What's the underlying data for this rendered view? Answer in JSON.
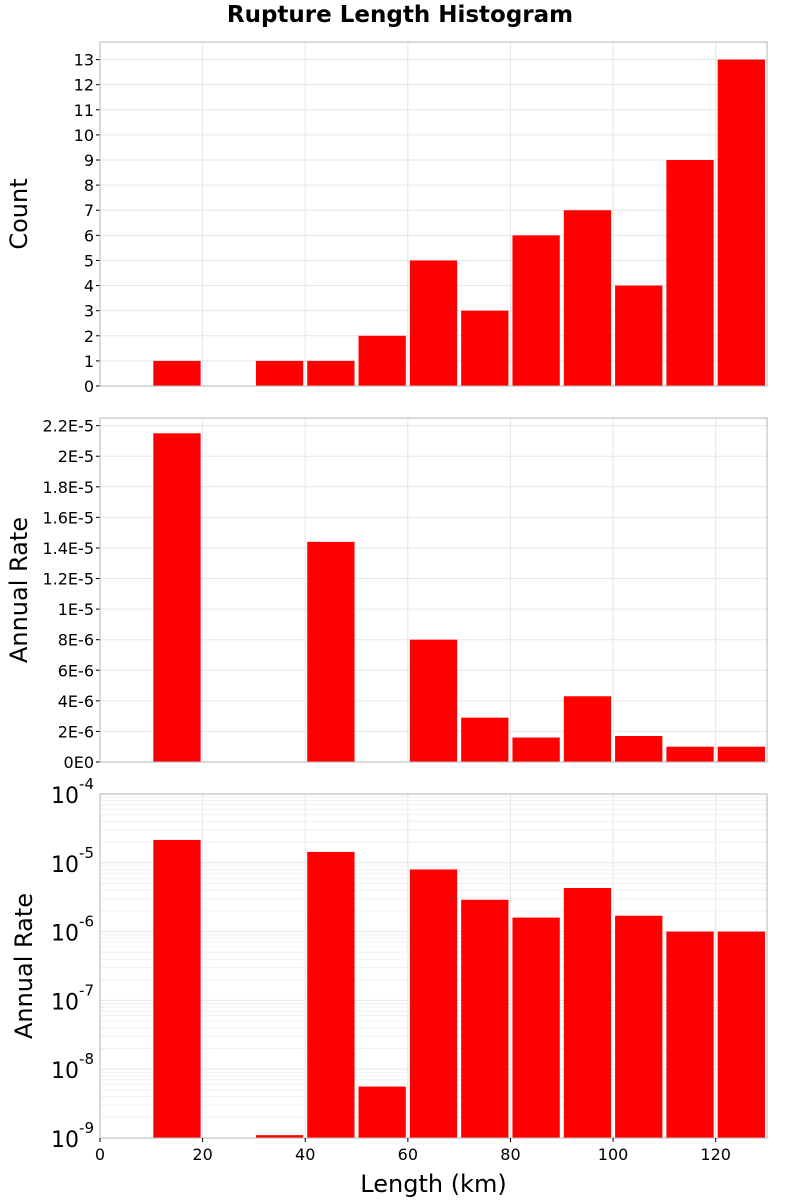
{
  "title": "Rupture Length Histogram",
  "colors": {
    "bar": "#ff0000",
    "grid": "#e6e6e6",
    "frame": "#b4b4b4"
  },
  "chart_data": [
    {
      "type": "bar",
      "title": "Rupture Length Histogram",
      "xlabel": "",
      "ylabel": "Count",
      "scale": "linear",
      "grid": true,
      "xlim": [
        0,
        130
      ],
      "ylim": [
        0,
        13.7
      ],
      "bin_width": 10,
      "x": [
        15,
        35,
        45,
        55,
        65,
        75,
        85,
        95,
        105,
        115,
        125
      ],
      "values": [
        1,
        1,
        1,
        2,
        5,
        3,
        6,
        7,
        4,
        9,
        13
      ],
      "y_ticks": [
        0,
        1,
        2,
        3,
        4,
        5,
        6,
        7,
        8,
        9,
        10,
        11,
        12,
        13
      ],
      "y_tick_labels": [
        "0",
        "1",
        "2",
        "3",
        "4",
        "5",
        "6",
        "7",
        "8",
        "9",
        "10",
        "11",
        "12",
        "13"
      ]
    },
    {
      "type": "bar",
      "xlabel": "",
      "ylabel": "Annual Rate",
      "scale": "linear",
      "grid": true,
      "xlim": [
        0,
        130
      ],
      "ylim": [
        0,
        2.25e-05
      ],
      "bin_width": 10,
      "x": [
        15,
        35,
        45,
        55,
        65,
        75,
        85,
        95,
        105,
        115,
        125
      ],
      "values": [
        2.15e-05,
        1.1e-09,
        1.44e-05,
        5.6e-09,
        8e-06,
        2.9e-06,
        1.6e-06,
        4.3e-06,
        1.7e-06,
        1e-06,
        1e-06
      ],
      "y_ticks": [
        0,
        2e-06,
        4e-06,
        6e-06,
        8e-06,
        1e-05,
        1.2e-05,
        1.4e-05,
        1.6e-05,
        1.8e-05,
        2e-05,
        2.2e-05
      ],
      "y_tick_labels": [
        "0E0",
        "2E-6",
        "4E-6",
        "6E-6",
        "8E-6",
        "1E-5",
        "1.2E-5",
        "1.4E-5",
        "1.6E-5",
        "1.8E-5",
        "2E-5",
        "2.2E-5"
      ]
    },
    {
      "type": "bar",
      "xlabel": "Length (km)",
      "ylabel": "Annual Rate",
      "scale": "log",
      "grid": true,
      "xlim": [
        0,
        130
      ],
      "ylim": [
        1e-09,
        0.0001
      ],
      "bin_width": 10,
      "x": [
        15,
        35,
        45,
        55,
        65,
        75,
        85,
        95,
        105,
        115,
        125
      ],
      "values": [
        2.15e-05,
        1.1e-09,
        1.44e-05,
        5.6e-09,
        8e-06,
        2.9e-06,
        1.6e-06,
        4.3e-06,
        1.7e-06,
        1e-06,
        1e-06
      ],
      "y_tick_exponents": [
        -9,
        -8,
        -7,
        -6,
        -5,
        -4
      ],
      "y_tick_base": "10",
      "x_ticks": [
        0,
        20,
        40,
        60,
        80,
        100,
        120
      ],
      "x_tick_labels": [
        "0",
        "20",
        "40",
        "60",
        "80",
        "100",
        "120"
      ]
    }
  ]
}
